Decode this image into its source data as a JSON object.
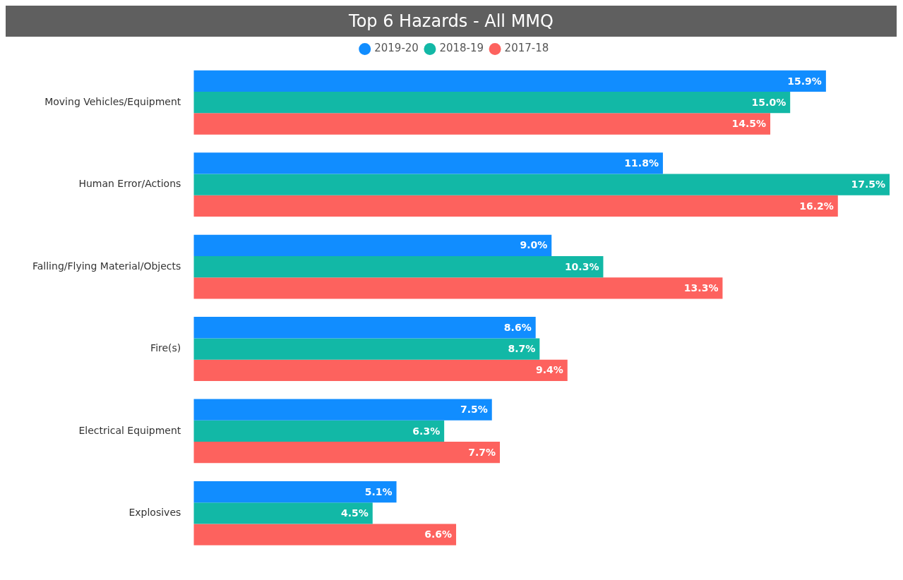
{
  "chart_data": {
    "type": "bar",
    "orientation": "horizontal",
    "title": "Top 6 Hazards - All MMQ",
    "categories": [
      "Moving Vehicles/Equipment",
      "Human Error/Actions",
      "Falling/Flying Material/Objects",
      "Fire(s)",
      "Electrical Equipment",
      "Explosives"
    ],
    "series": [
      {
        "name": "2019-20",
        "color": "#118dff",
        "values": [
          15.9,
          11.8,
          9.0,
          8.6,
          7.5,
          5.1
        ],
        "value_labels": [
          "15.9%",
          "11.8%",
          "9.0%",
          "8.6%",
          "7.5%",
          "5.1%"
        ]
      },
      {
        "name": "2018-19",
        "color": "#12b8a6",
        "values": [
          15.0,
          17.5,
          10.3,
          8.7,
          6.3,
          4.5
        ],
        "value_labels": [
          "15.0%",
          "17.5%",
          "10.3%",
          "8.7%",
          "6.3%",
          "4.5%"
        ]
      },
      {
        "name": "2017-18",
        "color": "#fd625e",
        "values": [
          14.5,
          16.2,
          13.3,
          9.4,
          7.7,
          6.6
        ],
        "value_labels": [
          "14.5%",
          "16.2%",
          "13.3%",
          "9.4%",
          "7.7%",
          "6.6%"
        ]
      }
    ],
    "legend": "top",
    "grid": false,
    "tick_labels": "y"
  }
}
